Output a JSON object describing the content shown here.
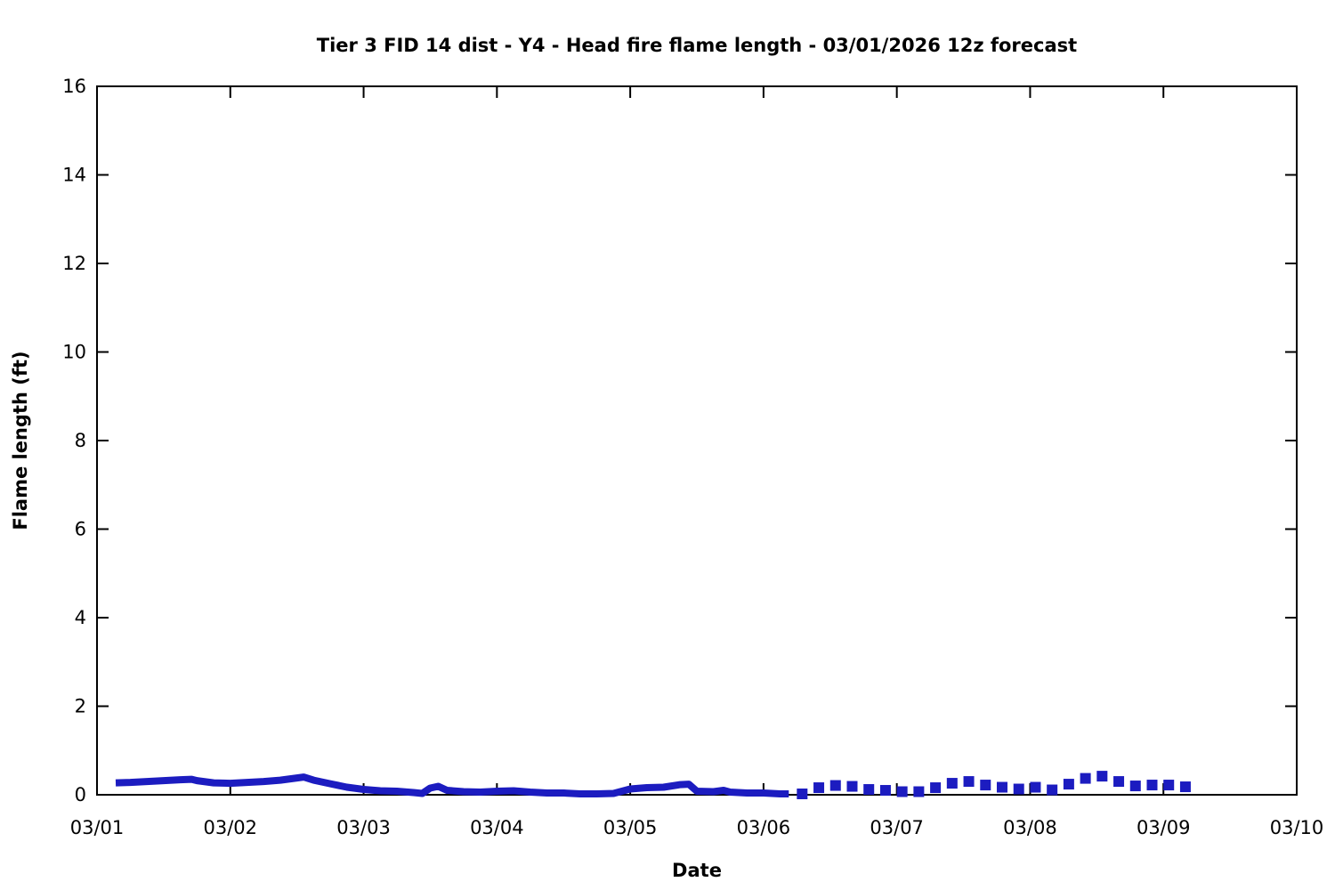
{
  "chart_data": {
    "type": "line",
    "title": "Tier 3 FID 14 dist - Y4 - Head fire flame length - 03/01/2026 12z forecast",
    "xlabel": "Date",
    "ylabel": "Flame length (ft)",
    "xlim": [
      0,
      9
    ],
    "ylim": [
      0,
      16
    ],
    "x_unit_note": "x values are fractional days after 03/01 00:00",
    "x_tick_labels": [
      "03/01",
      "03/02",
      "03/03",
      "03/04",
      "03/05",
      "03/06",
      "03/07",
      "03/08",
      "03/09",
      "03/10"
    ],
    "y_ticks": [
      0,
      2,
      4,
      6,
      8,
      10,
      12,
      14,
      16
    ],
    "grid": false,
    "legend_position": "none",
    "series_color": "#1c1cc0",
    "axis_color": "#000000",
    "series": [
      {
        "name": "head-fire-flame-length-solid",
        "style": "thick-solid-line",
        "points": [
          [
            0.14,
            0.27
          ],
          [
            0.25,
            0.28
          ],
          [
            0.375,
            0.3
          ],
          [
            0.5,
            0.32
          ],
          [
            0.625,
            0.34
          ],
          [
            0.71,
            0.35
          ],
          [
            0.75,
            0.32
          ],
          [
            0.875,
            0.27
          ],
          [
            1.0,
            0.26
          ],
          [
            1.125,
            0.28
          ],
          [
            1.25,
            0.3
          ],
          [
            1.375,
            0.33
          ],
          [
            1.5,
            0.38
          ],
          [
            1.55,
            0.4
          ],
          [
            1.625,
            0.33
          ],
          [
            1.75,
            0.25
          ],
          [
            1.875,
            0.17
          ],
          [
            2.0,
            0.12
          ],
          [
            2.125,
            0.09
          ],
          [
            2.25,
            0.08
          ],
          [
            2.375,
            0.05
          ],
          [
            2.44,
            0.03
          ],
          [
            2.5,
            0.15
          ],
          [
            2.56,
            0.19
          ],
          [
            2.625,
            0.1
          ],
          [
            2.75,
            0.07
          ],
          [
            2.875,
            0.06
          ],
          [
            3.0,
            0.08
          ],
          [
            3.125,
            0.09
          ],
          [
            3.25,
            0.06
          ],
          [
            3.375,
            0.04
          ],
          [
            3.5,
            0.04
          ],
          [
            3.625,
            0.02
          ],
          [
            3.75,
            0.02
          ],
          [
            3.875,
            0.03
          ],
          [
            4.0,
            0.13
          ],
          [
            4.125,
            0.16
          ],
          [
            4.25,
            0.17
          ],
          [
            4.375,
            0.23
          ],
          [
            4.44,
            0.24
          ],
          [
            4.5,
            0.08
          ],
          [
            4.625,
            0.07
          ],
          [
            4.7,
            0.1
          ],
          [
            4.75,
            0.06
          ],
          [
            4.875,
            0.04
          ],
          [
            5.0,
            0.04
          ],
          [
            5.125,
            0.02
          ],
          [
            5.19,
            0.02
          ]
        ]
      },
      {
        "name": "head-fire-flame-length-dotted",
        "style": "square-markers-3-hourly",
        "points": [
          [
            5.29,
            0.02
          ],
          [
            5.415,
            0.16
          ],
          [
            5.54,
            0.21
          ],
          [
            5.665,
            0.19
          ],
          [
            5.79,
            0.12
          ],
          [
            5.915,
            0.1
          ],
          [
            6.04,
            0.07
          ],
          [
            6.165,
            0.07
          ],
          [
            6.29,
            0.16
          ],
          [
            6.415,
            0.26
          ],
          [
            6.54,
            0.3
          ],
          [
            6.665,
            0.22
          ],
          [
            6.79,
            0.17
          ],
          [
            6.915,
            0.13
          ],
          [
            7.04,
            0.17
          ],
          [
            7.165,
            0.11
          ],
          [
            7.29,
            0.24
          ],
          [
            7.415,
            0.37
          ],
          [
            7.54,
            0.42
          ],
          [
            7.665,
            0.3
          ],
          [
            7.79,
            0.2
          ],
          [
            7.915,
            0.22
          ],
          [
            8.04,
            0.22
          ],
          [
            8.165,
            0.18
          ]
        ]
      }
    ]
  }
}
